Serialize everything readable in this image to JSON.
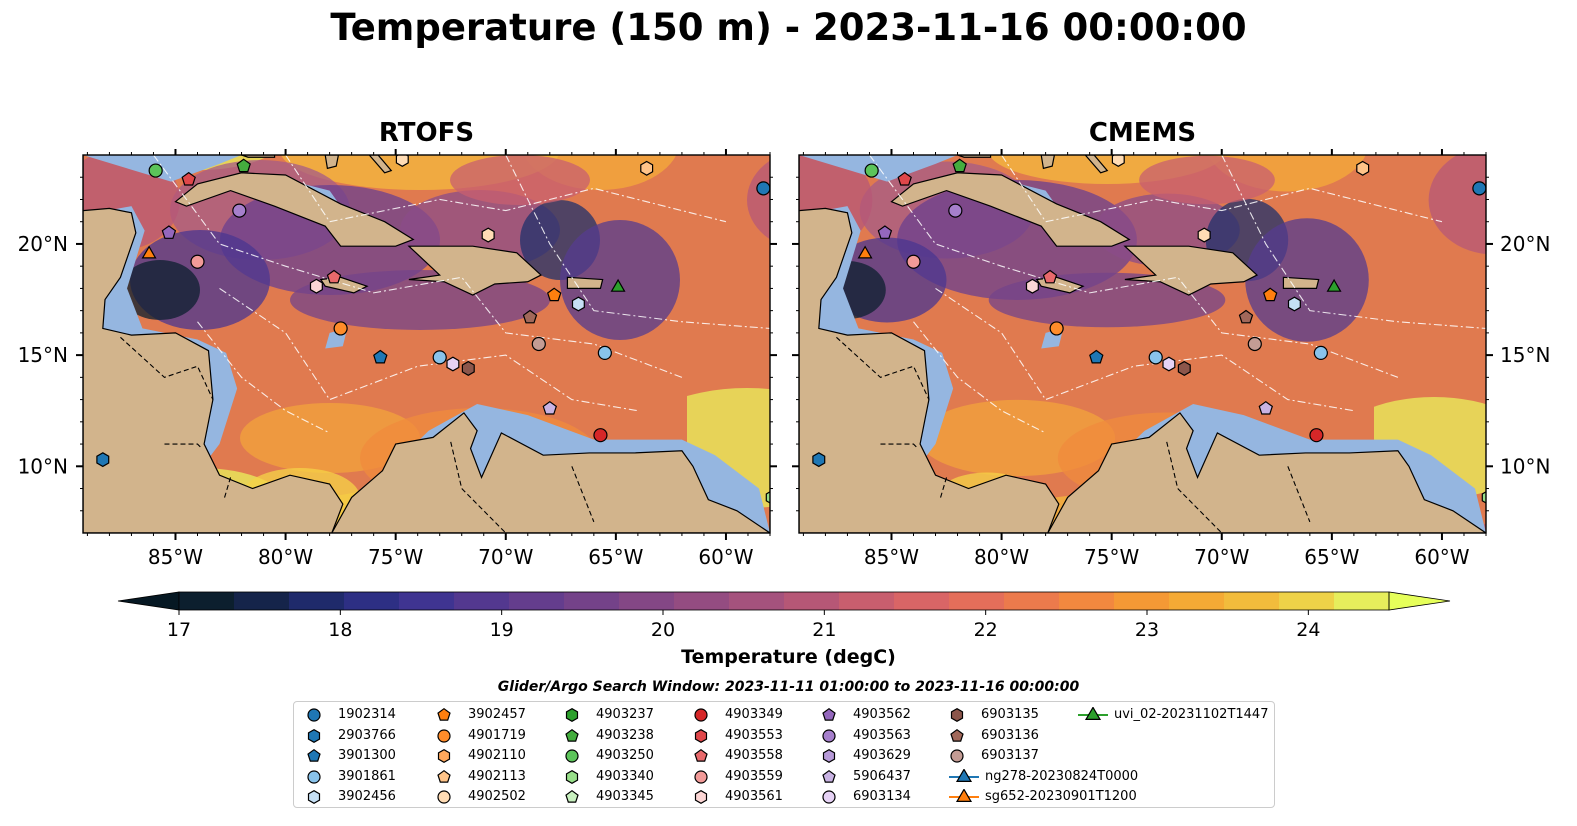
{
  "title": "Temperature (150 m) - 2023-11-16 00:00:00",
  "panels": [
    {
      "title": "RTOFS"
    },
    {
      "title": "CMEMS"
    }
  ],
  "axes": {
    "lon_ticks": [
      "85°W",
      "80°W",
      "75°W",
      "70°W",
      "65°W",
      "60°W"
    ],
    "lat_ticks": [
      "20°N",
      "15°N",
      "10°N"
    ]
  },
  "colorbar": {
    "label": "Temperature (degC)",
    "range": [
      17,
      24.5
    ],
    "extend": "both",
    "ticks": [
      "17",
      "18",
      "19",
      "20",
      "21",
      "22",
      "23",
      "24"
    ],
    "colors": [
      "#0c1f2e",
      "#15244a",
      "#1f2a6b",
      "#2d2f84",
      "#3f3491",
      "#53388f",
      "#643d8d",
      "#744289",
      "#844785",
      "#944c81",
      "#a5527d",
      "#b65776",
      "#c85e6e",
      "#d96566",
      "#e46e5a",
      "#ec7a4c",
      "#f2883f",
      "#f59935",
      "#f5aa35",
      "#f2bc3c",
      "#eed248",
      "#e6ee5c"
    ],
    "over_color": "#e6ff5a",
    "under_color": "#061823"
  },
  "colors": {
    "land": "#d2b48c",
    "shelf": "#95b6e0",
    "deep_cold": "#0a2232"
  },
  "search_window": "Glider/Argo Search Window: 2023-11-11 01:00:00 to 2023-11-16 00:00:00",
  "legend": [
    {
      "label": "1902314",
      "marker": "circle",
      "color": "#1f77b4"
    },
    {
      "label": "2903766",
      "marker": "hexagon",
      "color": "#1f77b4"
    },
    {
      "label": "3901300",
      "marker": "pentagon",
      "color": "#1f77b4"
    },
    {
      "label": "3901861",
      "marker": "circle",
      "color": "#89c3eb"
    },
    {
      "label": "3902456",
      "marker": "hexagon",
      "color": "#c6e0f5"
    },
    {
      "label": "3902457",
      "marker": "pentagon",
      "color": "#ff7f0e"
    },
    {
      "label": "4901719",
      "marker": "circle",
      "color": "#ff8c2a"
    },
    {
      "label": "4902110",
      "marker": "hexagon",
      "color": "#ffa85c"
    },
    {
      "label": "4902113",
      "marker": "pentagon",
      "color": "#ffc489"
    },
    {
      "label": "4902502",
      "marker": "circle",
      "color": "#ffdcb5"
    },
    {
      "label": "4903237",
      "marker": "hexagon",
      "color": "#2ca02c"
    },
    {
      "label": "4903238",
      "marker": "pentagon",
      "color": "#44ad3e"
    },
    {
      "label": "4903250",
      "marker": "circle",
      "color": "#5cc45a"
    },
    {
      "label": "4903340",
      "marker": "hexagon",
      "color": "#98df8a"
    },
    {
      "label": "4903345",
      "marker": "pentagon",
      "color": "#c8f0bf"
    },
    {
      "label": "4903349",
      "marker": "circle",
      "color": "#d62728"
    },
    {
      "label": "4903553",
      "marker": "hexagon",
      "color": "#e0474a"
    },
    {
      "label": "4903558",
      "marker": "pentagon",
      "color": "#e8696b"
    },
    {
      "label": "4903559",
      "marker": "circle",
      "color": "#f29a98"
    },
    {
      "label": "4903561",
      "marker": "hexagon",
      "color": "#fcd6d5"
    },
    {
      "label": "4903562",
      "marker": "pentagon",
      "color": "#9467bd"
    },
    {
      "label": "4903563",
      "marker": "circle",
      "color": "#a67fcc"
    },
    {
      "label": "4903629",
      "marker": "hexagon",
      "color": "#b79ad8"
    },
    {
      "label": "5906437",
      "marker": "pentagon",
      "color": "#c9b3e3"
    },
    {
      "label": "6903134",
      "marker": "circle",
      "color": "#e6d2f5"
    },
    {
      "label": "6903135",
      "marker": "hexagon",
      "color": "#8c564b"
    },
    {
      "label": "6903136",
      "marker": "pentagon",
      "color": "#a1685a"
    },
    {
      "label": "6903137",
      "marker": "circle",
      "color": "#c49c94"
    },
    {
      "label": "ng278-20230824T0000",
      "marker": "triangle",
      "color": "#1f77b4"
    },
    {
      "label": "sg652-20230901T1200",
      "marker": "triangle",
      "color": "#ff7f0e"
    },
    {
      "label": "uvi_02-20231102T1447",
      "marker": "triangle",
      "color": "#2ca02c"
    }
  ],
  "map_markers": [
    {
      "lon": -85.9,
      "lat": 23.3,
      "marker": "circle",
      "color": "#5cc45a"
    },
    {
      "lon": -84.4,
      "lat": 22.9,
      "marker": "pentagon",
      "color": "#e0474a"
    },
    {
      "lon": -81.9,
      "lat": 23.5,
      "marker": "pentagon",
      "color": "#44ad3e"
    },
    {
      "lon": -74.7,
      "lat": 23.8,
      "marker": "hexagon",
      "color": "#ffdcb5"
    },
    {
      "lon": -63.6,
      "lat": 23.4,
      "marker": "hexagon",
      "color": "#ffc489"
    },
    {
      "lon": -58.3,
      "lat": 22.5,
      "marker": "circle",
      "color": "#1f77b4"
    },
    {
      "lon": -85.3,
      "lat": 20.5,
      "marker": "pentagon",
      "color": "#9467bd"
    },
    {
      "lon": -82.1,
      "lat": 21.5,
      "marker": "circle",
      "color": "#a67fcc"
    },
    {
      "lon": -86.2,
      "lat": 19.6,
      "marker": "triangle",
      "color": "#ff7f0e"
    },
    {
      "lon": -84.0,
      "lat": 19.2,
      "marker": "circle",
      "color": "#f29a98"
    },
    {
      "lon": -70.8,
      "lat": 20.4,
      "marker": "hexagon",
      "color": "#ffdcb5"
    },
    {
      "lon": -77.8,
      "lat": 18.5,
      "marker": "pentagon",
      "color": "#e8696b"
    },
    {
      "lon": -78.6,
      "lat": 18.1,
      "marker": "hexagon",
      "color": "#fcd6d5"
    },
    {
      "lon": -67.8,
      "lat": 17.7,
      "marker": "pentagon",
      "color": "#ff7f0e"
    },
    {
      "lon": -66.7,
      "lat": 17.3,
      "marker": "hexagon",
      "color": "#c6e0f5"
    },
    {
      "lon": -64.9,
      "lat": 18.1,
      "marker": "triangle",
      "color": "#2ca02c"
    },
    {
      "lon": -77.5,
      "lat": 16.2,
      "marker": "circle",
      "color": "#ff8c2a"
    },
    {
      "lon": -68.9,
      "lat": 16.7,
      "marker": "pentagon",
      "color": "#a1685a"
    },
    {
      "lon": -68.5,
      "lat": 15.5,
      "marker": "circle",
      "color": "#c49c94"
    },
    {
      "lon": -75.7,
      "lat": 14.9,
      "marker": "pentagon",
      "color": "#1f77b4"
    },
    {
      "lon": -73.0,
      "lat": 14.9,
      "marker": "circle",
      "color": "#89c3eb"
    },
    {
      "lon": -72.4,
      "lat": 14.6,
      "marker": "hexagon",
      "color": "#e6d2f5"
    },
    {
      "lon": -71.7,
      "lat": 14.4,
      "marker": "hexagon",
      "color": "#8c564b"
    },
    {
      "lon": -65.5,
      "lat": 15.1,
      "marker": "circle",
      "color": "#89c3eb"
    },
    {
      "lon": -68.0,
      "lat": 12.6,
      "marker": "pentagon",
      "color": "#c9b3e3"
    },
    {
      "lon": -65.7,
      "lat": 11.4,
      "marker": "circle",
      "color": "#d62728"
    },
    {
      "lon": -88.3,
      "lat": 10.3,
      "marker": "hexagon",
      "color": "#1f77b4"
    },
    {
      "lon": -57.9,
      "lat": 8.6,
      "marker": "hexagon",
      "color": "#98df8a"
    }
  ]
}
